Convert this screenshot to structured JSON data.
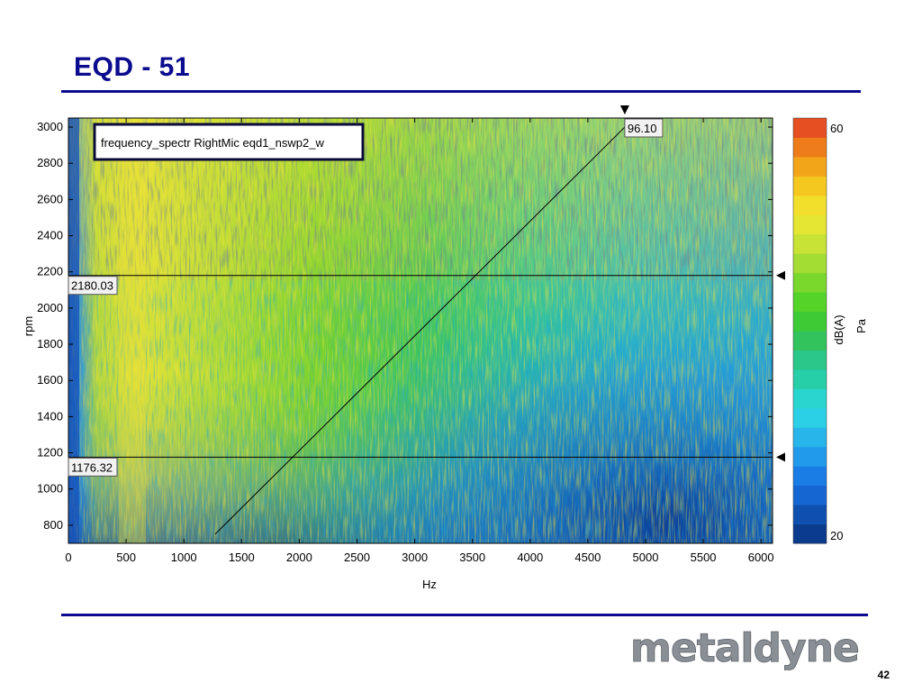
{
  "slide": {
    "title": "EQD - 51",
    "page_number": "42",
    "logo_text": "metaldyne",
    "colors": {
      "title": "#0b0b8f",
      "rule": "#0b0b8f",
      "logo": "#8a8f96"
    }
  },
  "chart_data": {
    "type": "heatmap",
    "legend_text": "frequency_spectr RightMic  eqd1_nswp2_w",
    "xlabel": "Hz",
    "ylabel": "rpm",
    "x_range": [
      0,
      6100
    ],
    "y_range": [
      700,
      3050
    ],
    "x_ticks": [
      0,
      500,
      1000,
      1500,
      2000,
      2500,
      3000,
      3500,
      4000,
      4500,
      5000,
      5500,
      6000
    ],
    "y_ticks": [
      800,
      1000,
      1200,
      1400,
      1600,
      1800,
      2000,
      2200,
      2400,
      2600,
      2800,
      3000
    ],
    "colorbar": {
      "min": 20,
      "max": 60,
      "min_label": "20",
      "max_label": "60",
      "unit_label": "dB(A)",
      "unit_label2": "Pa",
      "colors": [
        "#0b3b8c",
        "#0f4fb0",
        "#1565d2",
        "#1a7de6",
        "#229aeb",
        "#27b5ea",
        "#2cd0e6",
        "#29d6cf",
        "#27cfa8",
        "#2bc68a",
        "#33c35c",
        "#3ccb35",
        "#54d329",
        "#7ad72c",
        "#a3dc33",
        "#c8e236",
        "#e5e633",
        "#f2df2b",
        "#f4c81f",
        "#f3a51a",
        "#ef7c1a",
        "#e64f22"
      ]
    },
    "cursors": {
      "horizontal": [
        {
          "y": 2180.03,
          "label": "2180.03"
        },
        {
          "y": 1176.32,
          "label": "1176.32"
        }
      ],
      "order_line": {
        "from": {
          "x": 1270,
          "y": 750
        },
        "to": {
          "x": 4820,
          "y": 3000
        }
      },
      "vertical_marker": {
        "x": 4820,
        "label": "96.10"
      }
    }
  }
}
